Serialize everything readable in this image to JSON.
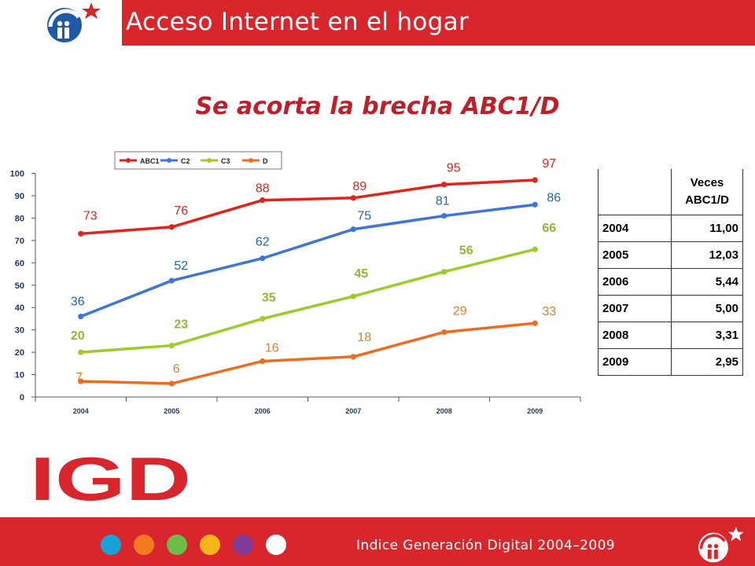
{
  "header": {
    "title": "Acceso Internet en el hogar"
  },
  "slide": {
    "title": "Se acorta la brecha ABC1/D"
  },
  "chart_data": {
    "type": "line",
    "categories": [
      "2004",
      "2005",
      "2006",
      "2007",
      "2008",
      "2009"
    ],
    "ylim": [
      0,
      100
    ],
    "yticks": [
      0,
      10,
      20,
      30,
      40,
      50,
      60,
      70,
      80,
      90,
      100
    ],
    "legend_position": "top",
    "series": [
      {
        "name": "ABC1",
        "color": "#e3221c",
        "label_color": "#e3221c",
        "values": [
          73,
          76,
          88,
          89,
          95,
          97
        ]
      },
      {
        "name": "C2",
        "color": "#3f74d8",
        "label_color": "#1f63b5",
        "values": [
          36,
          52,
          62,
          75,
          81,
          86
        ]
      },
      {
        "name": "C3",
        "color": "#9ccc2a",
        "label_color": "#8fb832",
        "values": [
          20,
          23,
          35,
          45,
          56,
          66
        ]
      },
      {
        "name": "D",
        "color": "#ee6c1f",
        "label_color": "#e77b25",
        "values": [
          7,
          6,
          16,
          18,
          29,
          33
        ]
      }
    ]
  },
  "table": {
    "header": "Veces ABC1/D",
    "rows": [
      {
        "year": "2004",
        "value": "11,00"
      },
      {
        "year": "2005",
        "value": "12,03"
      },
      {
        "year": "2006",
        "value": "5,44"
      },
      {
        "year": "2007",
        "value": "5,00"
      },
      {
        "year": "2008",
        "value": "3,31"
      },
      {
        "year": "2009",
        "value": "2,95"
      }
    ]
  },
  "brand": {
    "logo_text": "IGD",
    "logo_color": "#d9262c"
  },
  "footer": {
    "text": "Indice Generación Digital 2004–2009",
    "dots": [
      "#17a3d8",
      "#f47a20",
      "#6bbd45",
      "#f8b517",
      "#7e3b97",
      "#ffffff"
    ]
  }
}
